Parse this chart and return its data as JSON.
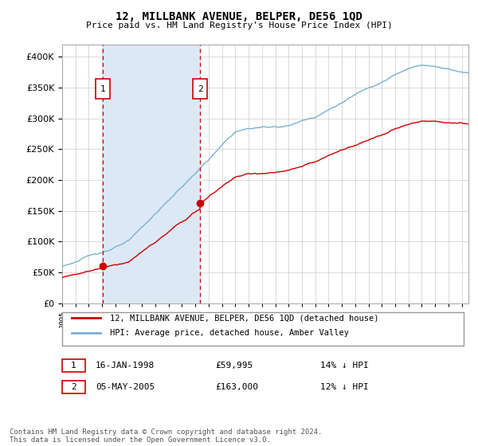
{
  "title": "12, MILLBANK AVENUE, BELPER, DE56 1QD",
  "subtitle": "Price paid vs. HM Land Registry's House Price Index (HPI)",
  "ytick_values": [
    0,
    50000,
    100000,
    150000,
    200000,
    250000,
    300000,
    350000,
    400000
  ],
  "ylim": [
    0,
    420000
  ],
  "xlim_start": 1995.0,
  "xlim_end": 2025.5,
  "sale_dates": [
    1998.04,
    2005.35
  ],
  "sale_prices": [
    59995,
    163000
  ],
  "sale_labels": [
    "1",
    "2"
  ],
  "sale_info": [
    {
      "label": "1",
      "date": "16-JAN-1998",
      "price": "£59,995",
      "hpi": "14% ↓ HPI"
    },
    {
      "label": "2",
      "date": "05-MAY-2005",
      "price": "£163,000",
      "hpi": "12% ↓ HPI"
    }
  ],
  "legend_entries": [
    {
      "label": "12, MILLBANK AVENUE, BELPER, DE56 1QD (detached house)",
      "color": "#cc0000"
    },
    {
      "label": "HPI: Average price, detached house, Amber Valley",
      "color": "#7ab0d4"
    }
  ],
  "footnote": "Contains HM Land Registry data © Crown copyright and database right 2024.\nThis data is licensed under the Open Government Licence v3.0.",
  "fig_bg_color": "#ffffff",
  "plot_bg_color": "#ffffff",
  "shade_color": "#dce9f5",
  "grid_color": "#cccccc",
  "vline_color": "#cc0000",
  "red_line_color": "#cc0000",
  "blue_line_color": "#7ab0d4"
}
